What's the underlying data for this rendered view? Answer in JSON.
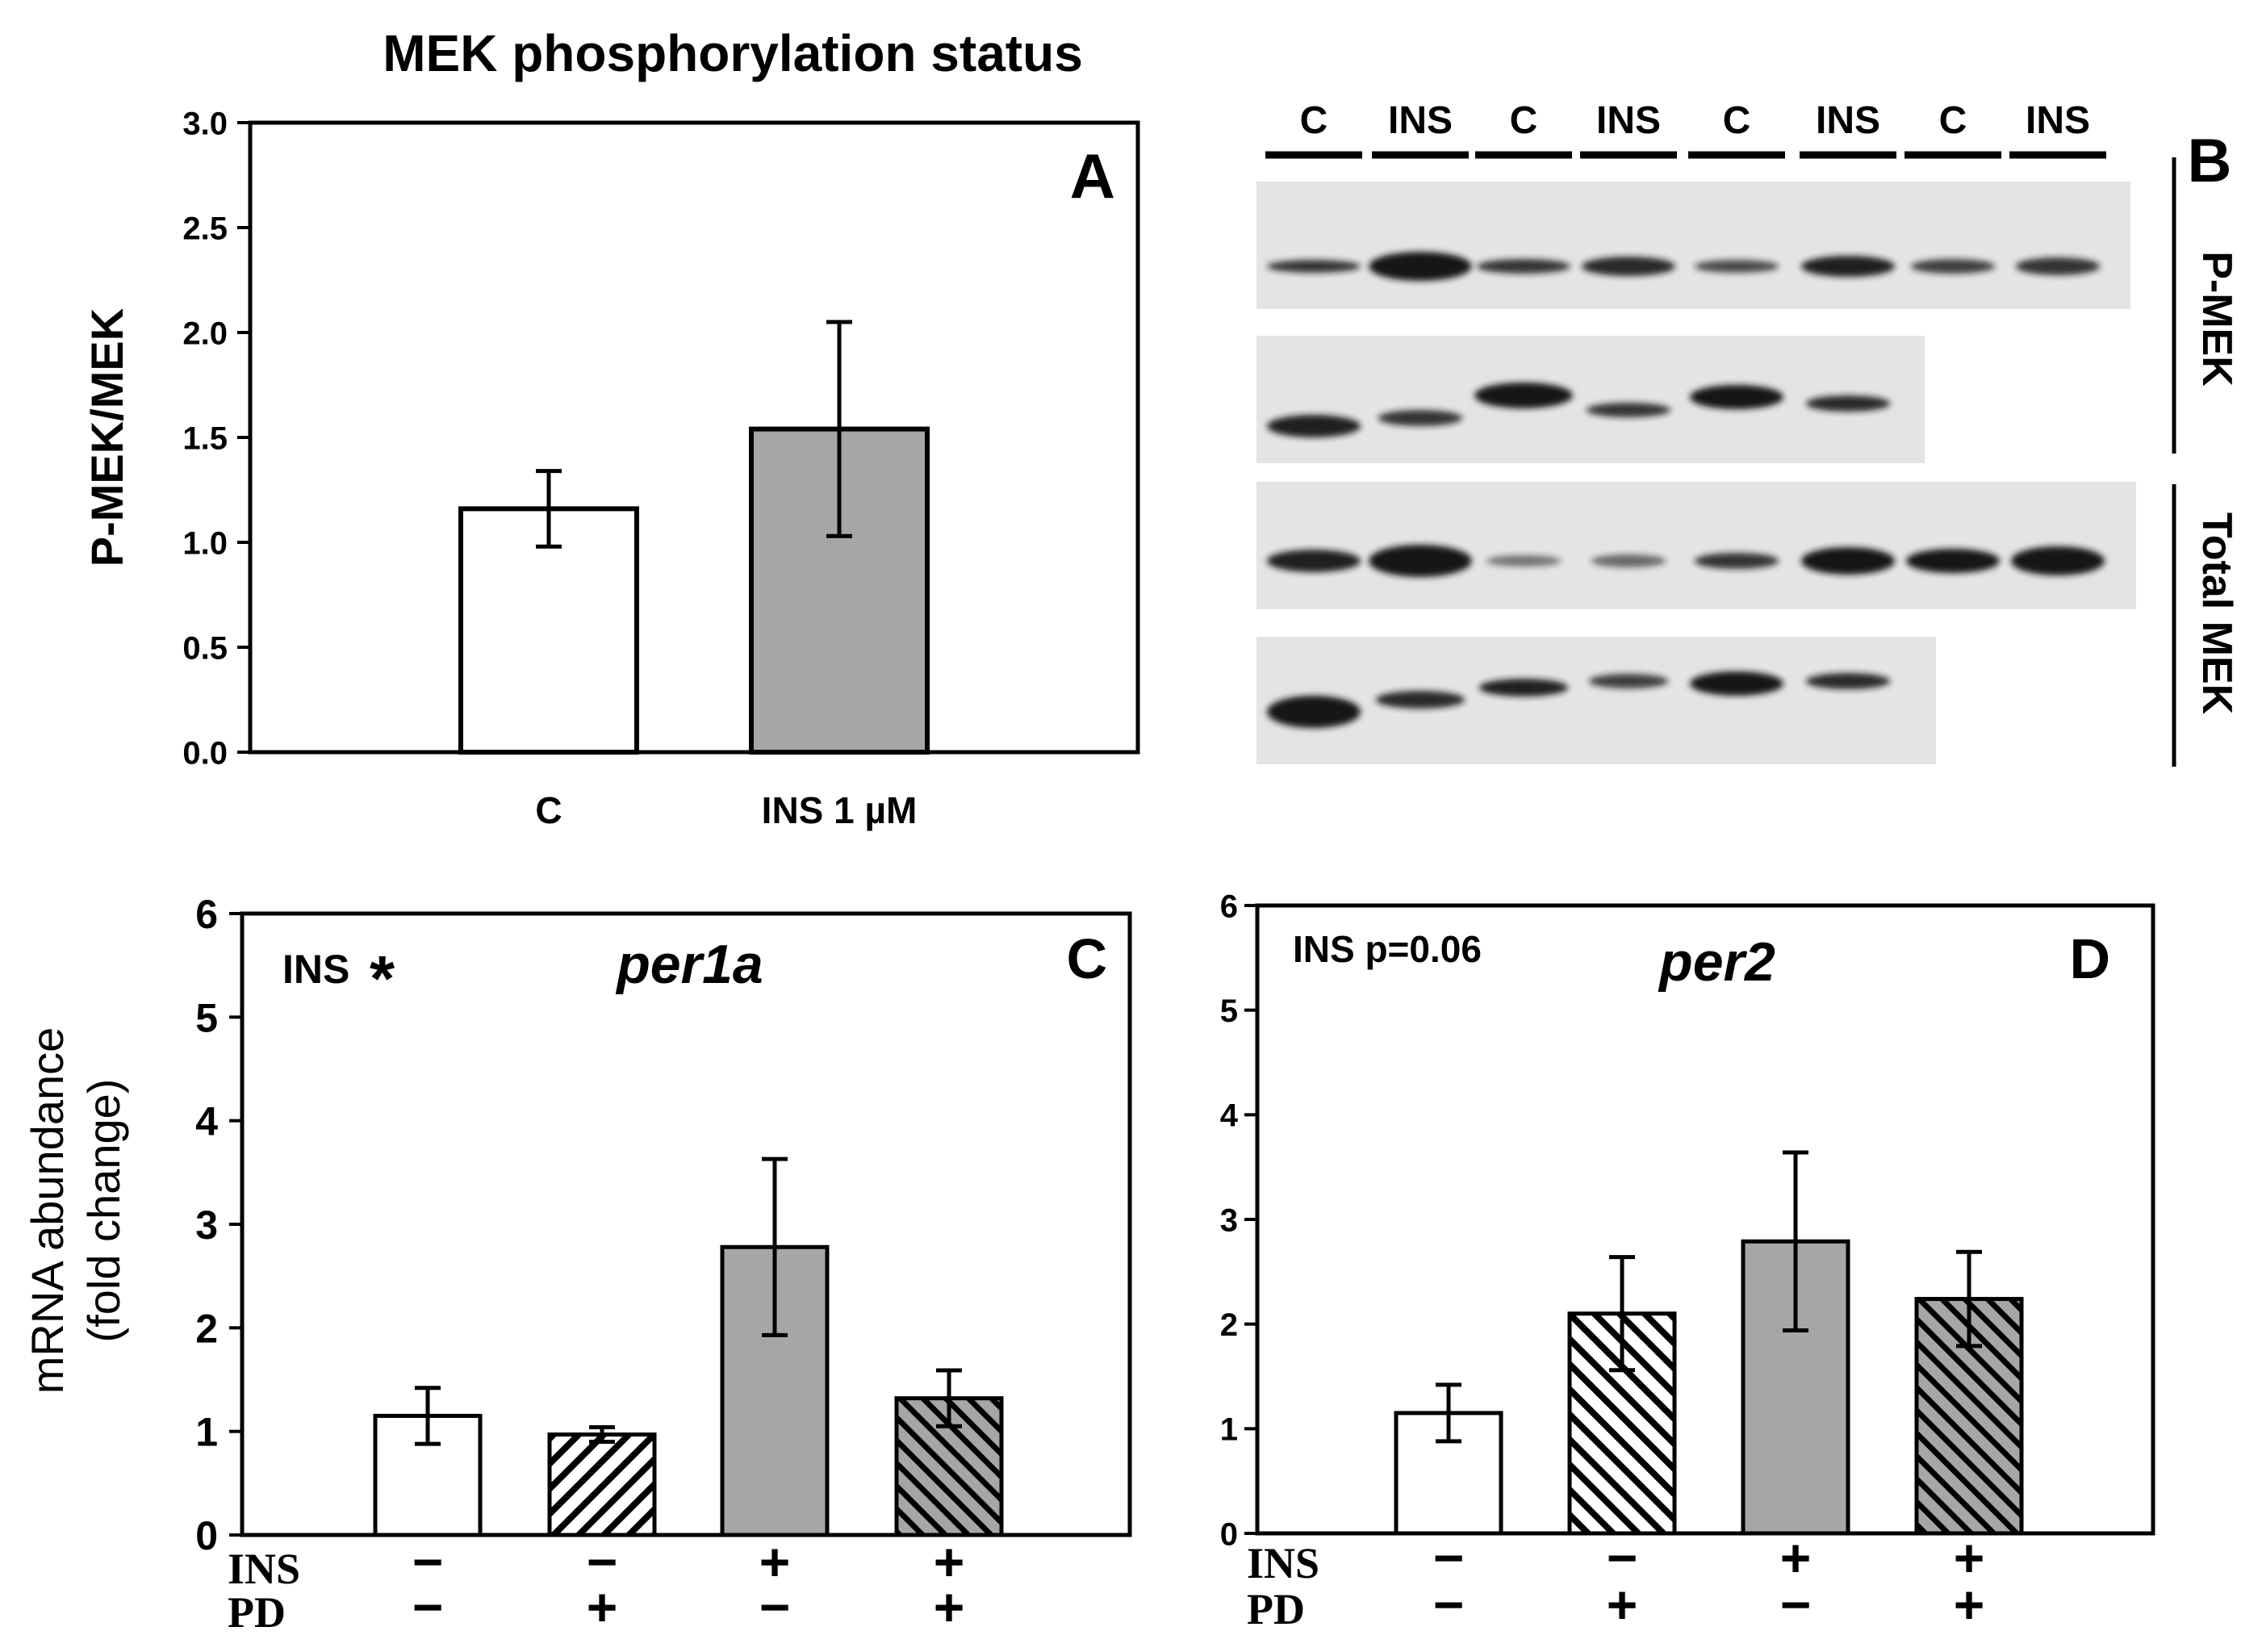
{
  "chart_data": [
    {
      "panel": "A",
      "type": "bar",
      "title": "MEK phosphorylation status",
      "ylabel": "P-MEK/MEK",
      "xlabel": "",
      "ylim": [
        0,
        3.0
      ],
      "yticks": [
        "0.0",
        "0.5",
        "1.0",
        "1.5",
        "2.0",
        "2.5",
        "3.0"
      ],
      "categories": [
        "C",
        "INS 1 µM"
      ],
      "values": [
        1.16,
        1.54
      ],
      "errors": [
        0.18,
        0.51
      ],
      "fills": [
        "white",
        "gray"
      ],
      "grid": false,
      "legend": "none"
    },
    {
      "panel": "B",
      "type": "blot",
      "lanes": [
        "C",
        "INS",
        "C",
        "INS",
        "C",
        "INS",
        "C",
        "INS"
      ],
      "row_groups": [
        "P-MEK",
        "Total MEK"
      ]
    },
    {
      "panel": "C",
      "type": "bar",
      "title": "per1a",
      "annotation": "INS",
      "ylabel": "mRNA abundance",
      "ylabel2": "(fold change)",
      "ylim": [
        0,
        6
      ],
      "yticks": [
        "0",
        "1",
        "2",
        "3",
        "4",
        "5",
        "6"
      ],
      "row_labels": [
        "INS",
        "PD"
      ],
      "conditions": [
        {
          "INS": "−",
          "PD": "−"
        },
        {
          "INS": "−",
          "PD": "+"
        },
        {
          "INS": "+",
          "PD": "−"
        },
        {
          "INS": "+",
          "PD": "+"
        }
      ],
      "values": [
        1.15,
        0.97,
        2.78,
        1.32
      ],
      "errors": [
        0.27,
        0.07,
        0.85,
        0.27
      ],
      "fills": [
        "white",
        "hatch",
        "gray",
        "gray-hatch"
      ],
      "grid": false,
      "legend": "none"
    },
    {
      "panel": "D",
      "type": "bar",
      "title": "per2",
      "annotation": "INS p=0.06",
      "ylim": [
        0,
        6
      ],
      "yticks": [
        "0",
        "1",
        "2",
        "3",
        "4",
        "5",
        "6"
      ],
      "row_labels": [
        "INS",
        "PD"
      ],
      "conditions": [
        {
          "INS": "−",
          "PD": "−"
        },
        {
          "INS": "−",
          "PD": "+"
        },
        {
          "INS": "+",
          "PD": "−"
        },
        {
          "INS": "+",
          "PD": "+"
        }
      ],
      "values": [
        1.15,
        2.1,
        2.79,
        2.24
      ],
      "errors": [
        0.27,
        0.54,
        0.85,
        0.45
      ],
      "fills": [
        "white",
        "hatch",
        "gray",
        "gray-hatch"
      ],
      "grid": false,
      "legend": "none"
    }
  ],
  "labels": {
    "panel_a": "A",
    "panel_b": "B",
    "panel_c": "C",
    "panel_d": "D",
    "asterisk": "*"
  },
  "colors": {
    "bar_gray": "#a6a6a6",
    "blot_bg": "#e4e4e4",
    "band": "#141414"
  }
}
